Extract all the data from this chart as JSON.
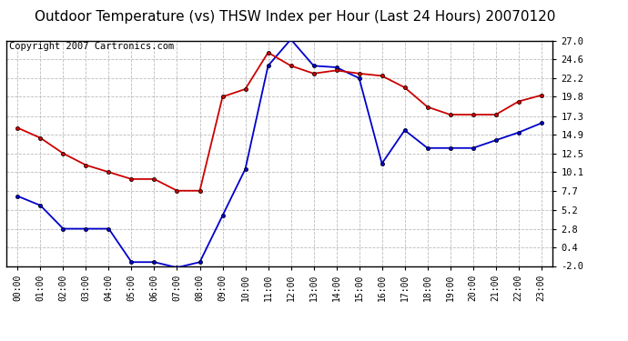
{
  "title": "Outdoor Temperature (vs) THSW Index per Hour (Last 24 Hours) 20070120",
  "copyright": "Copyright 2007 Cartronics.com",
  "hours": [
    "00:00",
    "01:00",
    "02:00",
    "03:00",
    "04:00",
    "05:00",
    "06:00",
    "07:00",
    "08:00",
    "09:00",
    "10:00",
    "11:00",
    "12:00",
    "13:00",
    "14:00",
    "15:00",
    "16:00",
    "17:00",
    "18:00",
    "19:00",
    "20:00",
    "21:00",
    "22:00",
    "23:00"
  ],
  "temp": [
    7.0,
    5.8,
    2.8,
    2.8,
    2.8,
    -1.5,
    -1.5,
    -2.2,
    -1.5,
    4.5,
    10.5,
    23.8,
    27.2,
    23.8,
    23.6,
    22.2,
    11.2,
    15.5,
    13.2,
    13.2,
    13.2,
    14.2,
    15.2,
    16.4
  ],
  "thsw": [
    15.8,
    14.5,
    12.5,
    11.0,
    10.1,
    9.2,
    9.2,
    7.7,
    7.7,
    19.8,
    20.8,
    25.5,
    23.8,
    22.8,
    23.2,
    22.8,
    22.5,
    21.0,
    18.5,
    17.5,
    17.5,
    17.5,
    19.2,
    20.0
  ],
  "temp_color": "#0000cc",
  "thsw_color": "#cc0000",
  "bg_color": "#ffffff",
  "plot_bg_color": "#ffffff",
  "grid_color": "#bbbbbb",
  "ylim": [
    -2.0,
    27.0
  ],
  "yticks": [
    -2.0,
    0.4,
    2.8,
    5.2,
    7.7,
    10.1,
    12.5,
    14.9,
    17.3,
    19.8,
    22.2,
    24.6,
    27.0
  ],
  "title_fontsize": 11,
  "copyright_fontsize": 7.5
}
